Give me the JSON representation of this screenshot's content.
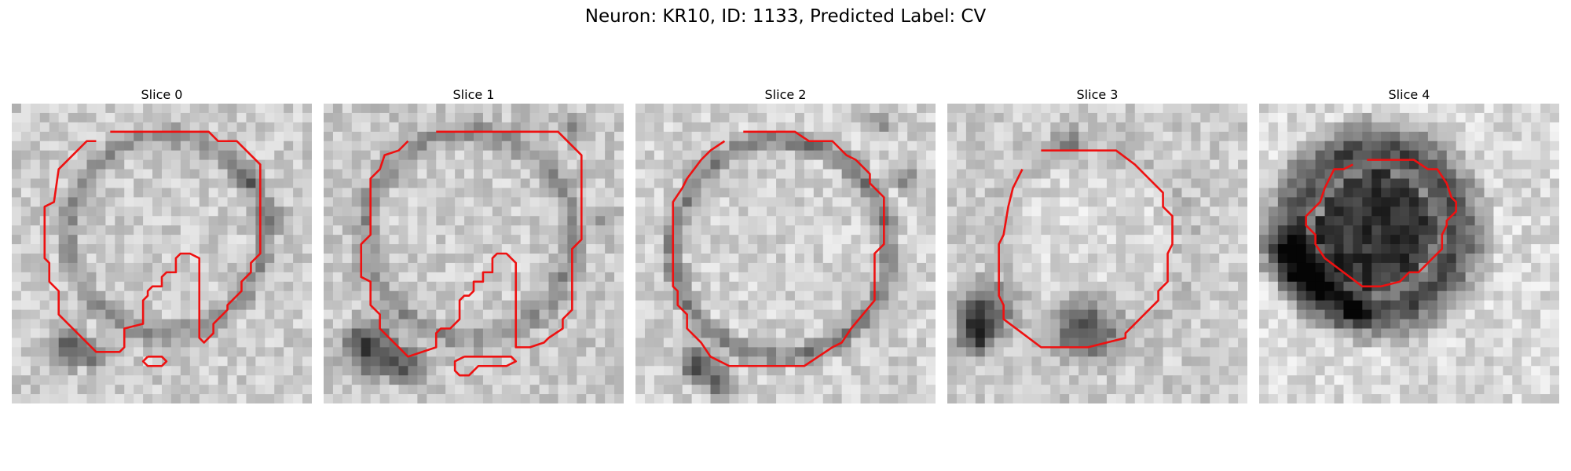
{
  "figure": {
    "title": "Neuron: KR10, ID: 1133, Predicted Label: CV"
  },
  "panels": [
    {
      "title": "Slice 0"
    },
    {
      "title": "Slice 1"
    },
    {
      "title": "Slice 2"
    },
    {
      "title": "Slice 3"
    },
    {
      "title": "Slice 4"
    }
  ],
  "colors": {
    "contour": "#ee1111",
    "background": "#ffffff"
  }
}
